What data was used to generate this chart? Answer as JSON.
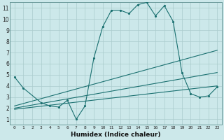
{
  "xlabel": "Humidex (Indice chaleur)",
  "xlim": [
    -0.5,
    23.5
  ],
  "ylim": [
    0.5,
    11.5
  ],
  "xticks": [
    0,
    1,
    2,
    3,
    4,
    5,
    6,
    7,
    8,
    9,
    10,
    11,
    12,
    13,
    14,
    15,
    16,
    17,
    18,
    19,
    20,
    21,
    22,
    23
  ],
  "yticks": [
    1,
    2,
    3,
    4,
    5,
    6,
    7,
    8,
    9,
    10,
    11
  ],
  "background_color": "#cce8ea",
  "grid_color": "#aacccc",
  "line_color": "#1a7070",
  "spine_color": "#6a9a9a",
  "tick_label_color": "#222222",
  "xlabel_color": "#111111",
  "lines": [
    {
      "x": [
        0,
        1,
        3,
        4,
        5,
        6,
        7,
        8,
        9,
        10,
        11,
        12,
        13,
        14,
        15,
        16,
        17,
        18,
        19,
        20,
        21,
        22,
        23
      ],
      "y": [
        4.8,
        3.8,
        2.5,
        2.2,
        2.1,
        2.7,
        1.0,
        2.2,
        6.5,
        9.3,
        10.8,
        10.8,
        10.5,
        11.3,
        11.5,
        10.3,
        11.2,
        9.8,
        5.2,
        3.3,
        3.0,
        3.1,
        3.9
      ]
    },
    {
      "x": [
        0,
        23
      ],
      "y": [
        2.2,
        7.2
      ]
    },
    {
      "x": [
        0,
        23
      ],
      "y": [
        2.0,
        5.2
      ]
    },
    {
      "x": [
        0,
        23
      ],
      "y": [
        1.9,
        4.0
      ]
    }
  ]
}
